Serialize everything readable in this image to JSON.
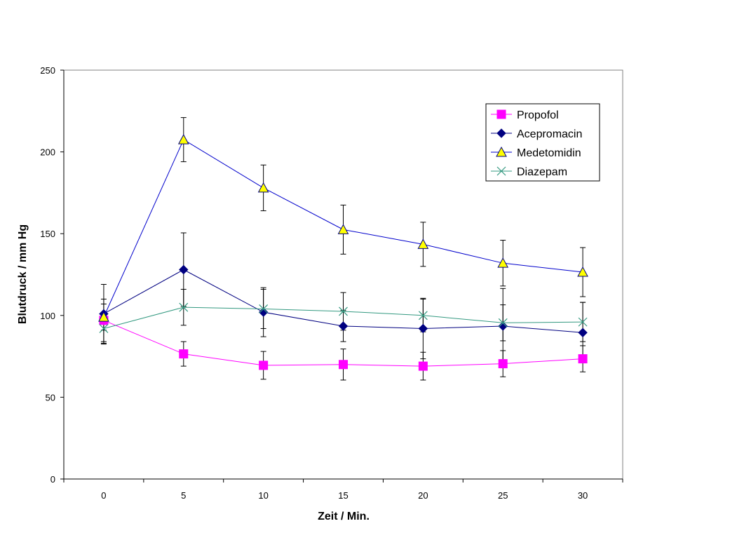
{
  "chart_data": {
    "type": "line",
    "xlabel": "Zeit / Min.",
    "ylabel": "Blutdruck / mm Hg",
    "x": [
      0,
      5,
      10,
      15,
      20,
      25,
      30
    ],
    "ylim": [
      0,
      250
    ],
    "yticks": [
      0,
      50,
      100,
      150,
      200,
      250
    ],
    "grid": false,
    "legend_position": "top-right",
    "error_bars": true,
    "series": [
      {
        "name": "Propofol",
        "color": "#ff00ff",
        "marker": "square",
        "values": [
          97,
          76.5,
          69.5,
          70,
          69,
          70.5,
          73.5
        ],
        "errors": [
          13,
          7.5,
          8.5,
          9.5,
          8.5,
          8,
          8
        ]
      },
      {
        "name": "Acepromacin",
        "color": "#000080",
        "marker": "diamond",
        "values": [
          101,
          128,
          102,
          93.5,
          92,
          93.5,
          89.5
        ],
        "errors": [
          18,
          22.5,
          15,
          9.5,
          18.5,
          23,
          18.5
        ]
      },
      {
        "name": "Medetomidin",
        "color": "#0000cc",
        "marker": "triangle",
        "values": [
          99,
          207.5,
          178,
          152.5,
          143.5,
          132,
          126.5
        ],
        "errors": [
          8,
          13.5,
          14,
          15,
          13.5,
          14,
          15
        ]
      },
      {
        "name": "Diazepam",
        "color": "#339980",
        "marker": "x",
        "values": [
          92,
          105,
          104,
          102.5,
          100,
          95.5,
          96
        ],
        "errors": [
          9.5,
          11,
          12,
          11.5,
          10,
          11,
          12
        ]
      }
    ]
  }
}
